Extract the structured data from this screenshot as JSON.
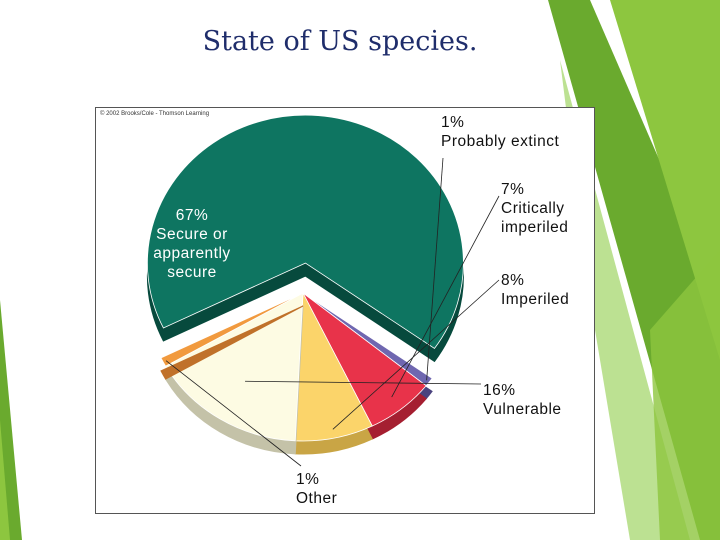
{
  "slide": {
    "title": "State of US species."
  },
  "figure": {
    "credit": "© 2002 Brooks/Cole - Thomson Learning"
  },
  "theme": {
    "accent_colors": [
      "#8dc63f",
      "#a5d76e",
      "#6aaa2e",
      "#4e8a23"
    ]
  },
  "chart_data": {
    "type": "pie",
    "slices": [
      {
        "pct": "67%",
        "label": "Secure or apparently secure",
        "lines": [
          "Secure or",
          "apparently",
          "secure"
        ],
        "value": 67,
        "color": "#0e7561",
        "side_color": "#074a3d"
      },
      {
        "pct": "1%",
        "label": "Probably extinct",
        "lines": [
          "Probably extinct"
        ],
        "value": 1,
        "color": "#6f67b0",
        "side_color": "#4a437e"
      },
      {
        "pct": "7%",
        "label": "Critically imperiled",
        "lines": [
          "Critically",
          "imperiled"
        ],
        "value": 7,
        "color": "#e8334a",
        "side_color": "#a51f31"
      },
      {
        "pct": "8%",
        "label": "Imperiled",
        "lines": [
          "Imperiled"
        ],
        "value": 8,
        "color": "#fbd46a",
        "side_color": "#c9a545"
      },
      {
        "pct": "16%",
        "label": "Vulnerable",
        "lines": [
          "Vulnerable"
        ],
        "value": 16,
        "color": "#fdfbe3",
        "side_color": "#c4c2a8"
      },
      {
        "pct": "1%",
        "label": "Other",
        "lines": [
          "Other"
        ],
        "value": 1,
        "color": "#f19a3e",
        "side_color": "#c0712a"
      }
    ]
  }
}
